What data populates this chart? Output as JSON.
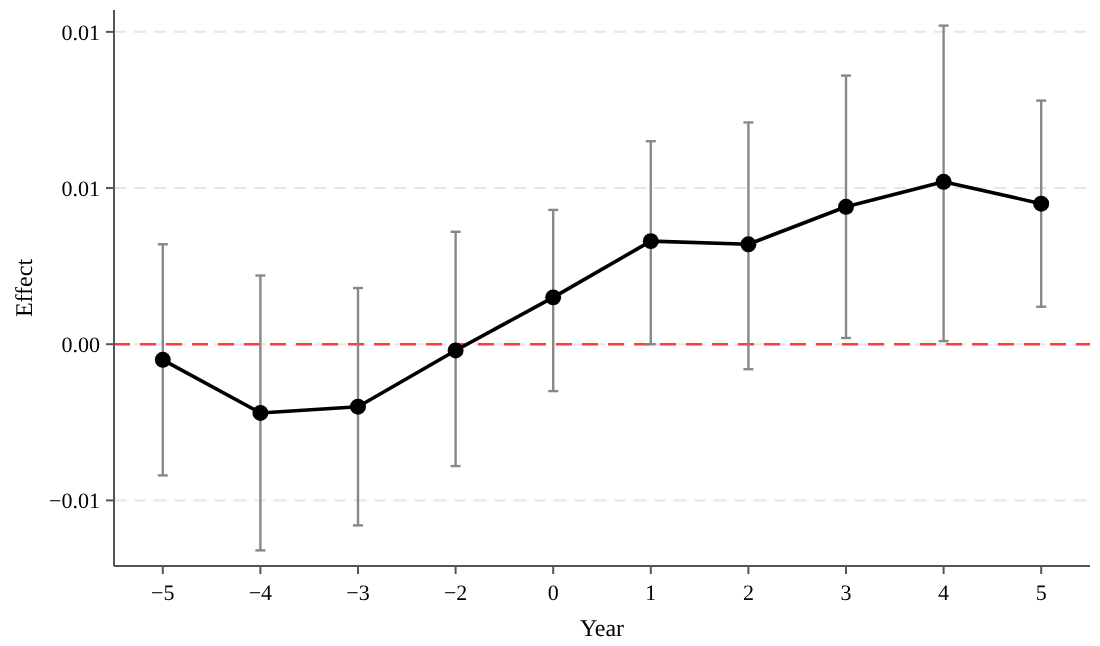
{
  "chart_data": {
    "type": "line",
    "xlabel": "Year",
    "ylabel": "Effect",
    "categories": [
      "−5",
      "−4",
      "−3",
      "−2",
      "0",
      "1",
      "2",
      "3",
      "4",
      "5"
    ],
    "series": [
      {
        "color": "#000000",
        "values": [
          -0.0005,
          -0.0022,
          -0.002,
          -0.0002,
          0.0015,
          0.0033,
          0.0032,
          0.0044,
          0.0052,
          0.0045
        ],
        "errors": [
          [
            -0.0042,
            0.0032
          ],
          [
            -0.0066,
            0.0022
          ],
          [
            -0.0058,
            0.0018
          ],
          [
            -0.0039,
            0.0036
          ],
          [
            -0.0015,
            0.0043
          ],
          [
            0.0,
            0.0065
          ],
          [
            -0.0008,
            0.0071
          ],
          [
            0.0002,
            0.0086
          ],
          [
            0.0001,
            0.0102
          ],
          [
            0.0012,
            0.0078
          ]
        ]
      }
    ],
    "ylim": [
      -0.0071,
      0.0107
    ],
    "yticks": [
      {
        "value": -0.005,
        "label": "−0.01"
      },
      {
        "value": 0,
        "label": "0.00"
      },
      {
        "value": 0.005,
        "label": "0.01"
      },
      {
        "value": 0.01,
        "label": "0.01"
      }
    ],
    "grid": "y",
    "marker": "circle",
    "line_style": "solid",
    "ref_lines": [
      {
        "axis": "y",
        "value": 0,
        "color": "#ff3b3b",
        "line_style": "dashed"
      }
    ]
  }
}
